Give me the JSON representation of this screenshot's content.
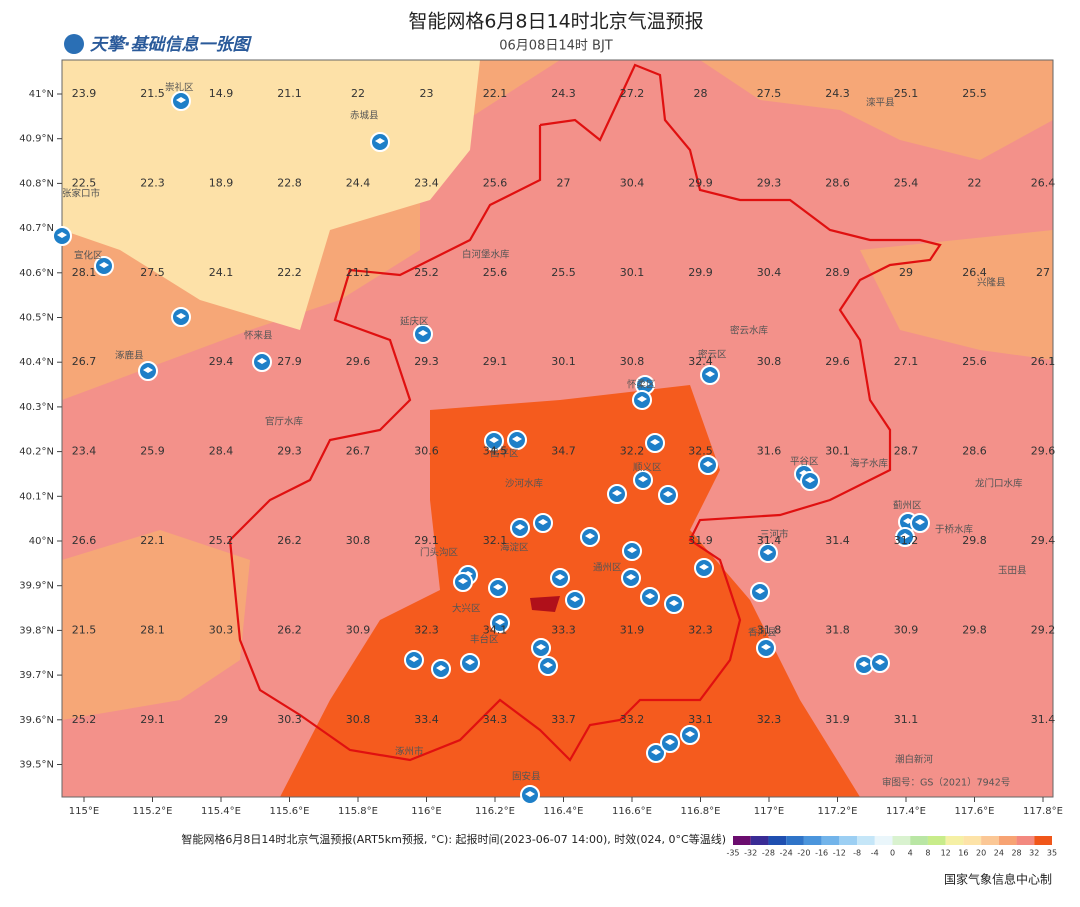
{
  "header": {
    "title": "智能网格6月8日14时北京气温预报",
    "subtitle": "06月08日14时 BJT",
    "logo": "天擎·基础信息一张图"
  },
  "map": {
    "lat_ticks": [
      {
        "value": 41,
        "label": "41°N"
      },
      {
        "value": 40.9,
        "label": "40.9°N"
      },
      {
        "value": 40.8,
        "label": "40.8°N"
      },
      {
        "value": 40.7,
        "label": "40.7°N"
      },
      {
        "value": 40.6,
        "label": "40.6°N"
      },
      {
        "value": 40.5,
        "label": "40.5°N"
      },
      {
        "value": 40.4,
        "label": "40.4°N"
      },
      {
        "value": 40.3,
        "label": "40.3°N"
      },
      {
        "value": 40.2,
        "label": "40.2°N"
      },
      {
        "value": 40.1,
        "label": "40.1°N"
      },
      {
        "value": 40,
        "label": "40°N"
      },
      {
        "value": 39.9,
        "label": "39.9°N"
      },
      {
        "value": 39.8,
        "label": "39.8°N"
      },
      {
        "value": 39.7,
        "label": "39.7°N"
      },
      {
        "value": 39.6,
        "label": "39.6°N"
      },
      {
        "value": 39.5,
        "label": "39.5°N"
      }
    ],
    "lon_ticks": [
      {
        "value": 115,
        "label": "115°E"
      },
      {
        "value": 115.2,
        "label": "115.2°E"
      },
      {
        "value": 115.4,
        "label": "115.4°E"
      },
      {
        "value": 115.6,
        "label": "115.6°E"
      },
      {
        "value": 115.8,
        "label": "115.8°E"
      },
      {
        "value": 116,
        "label": "116°E"
      },
      {
        "value": 116.2,
        "label": "116.2°E"
      },
      {
        "value": 116.4,
        "label": "116.4°E"
      },
      {
        "value": 116.6,
        "label": "116.6°E"
      },
      {
        "value": 116.8,
        "label": "116.8°E"
      },
      {
        "value": 117,
        "label": "117°E"
      },
      {
        "value": 117.2,
        "label": "117.2°E"
      },
      {
        "value": 117.4,
        "label": "117.4°E"
      },
      {
        "value": 117.6,
        "label": "117.6°E"
      },
      {
        "value": 117.8,
        "label": "117.8°E"
      }
    ],
    "temperature_rows": [
      [
        23.9,
        21.5,
        14.9,
        21.1,
        22,
        23,
        22.1,
        24.3,
        27.2,
        28,
        27.5,
        24.3,
        25.1,
        25.5,
        null
      ],
      [
        22.5,
        22.3,
        18.9,
        22.8,
        24.4,
        23.4,
        25.6,
        27,
        30.4,
        29.9,
        29.3,
        28.6,
        25.4,
        22,
        26.4
      ],
      [
        28.1,
        27.5,
        24.1,
        22.2,
        21.1,
        25.2,
        25.6,
        25.5,
        30.1,
        29.9,
        30.4,
        28.9,
        29,
        26.4,
        27
      ],
      [
        26.7,
        null,
        29.4,
        27.9,
        29.6,
        29.3,
        29.1,
        30.1,
        30.8,
        32.4,
        30.8,
        29.6,
        27.1,
        25.6,
        26.1
      ],
      [
        23.4,
        25.9,
        28.4,
        29.3,
        26.7,
        30.6,
        34.5,
        34.7,
        32.2,
        32.5,
        31.6,
        30.1,
        28.7,
        28.6,
        29.6
      ],
      [
        26.6,
        22.1,
        25.2,
        26.2,
        30.8,
        29.1,
        32.1,
        null,
        null,
        31.9,
        31.4,
        31.4,
        31.2,
        29.8,
        29.4
      ],
      [
        21.5,
        28.1,
        30.3,
        26.2,
        30.9,
        32.3,
        34.1,
        33.3,
        31.9,
        32.3,
        31.8,
        31.8,
        30.9,
        29.8,
        29.2
      ],
      [
        25.2,
        29.1,
        29,
        30.3,
        30.8,
        33.4,
        34.3,
        33.7,
        33.2,
        33.1,
        32.3,
        31.9,
        31.1,
        null,
        31.4
      ]
    ],
    "places": [
      "崇礼区",
      "赤城县",
      "张家口市",
      "宣化区",
      "怀来县",
      "涿鹿县",
      "官厅水库",
      "延庆区",
      "白河堡水库",
      "密云水库",
      "密云区",
      "怀柔区",
      "昌平区",
      "沙河水库",
      "顺义区",
      "门头沟区",
      "海淀区",
      "丰台区",
      "大兴区",
      "涿州市",
      "固安县",
      "平谷区",
      "海子水库",
      "蓟州区",
      "于桥水库",
      "三河市",
      "通州区",
      "香河县",
      "龙门口水库",
      "玉田县",
      "兴隆县",
      "滦平县",
      "潮白新河",
      "审图号：GS（2021）7942号"
    ],
    "legend": {
      "labels": [
        -35,
        -32,
        -28,
        -24,
        -20,
        -16,
        -12,
        -8,
        -4,
        0,
        4,
        8,
        12,
        16,
        20,
        24,
        28,
        32,
        35
      ],
      "colors": [
        "#6b0d6e",
        "#3a2c95",
        "#1f4fb0",
        "#2f74c8",
        "#4b95dc",
        "#72b4ea",
        "#9ccff3",
        "#c5e6f8",
        "#eaf6fb",
        "#d9f2cf",
        "#b9e6a4",
        "#c8ec8a",
        "#f5f0a5",
        "#fde3a8",
        "#fbc795",
        "#f7a373",
        "#f3897f",
        "#f0561a"
      ]
    }
  },
  "footer": {
    "caption": "智能网格6月8日14时北京气温预报(ART5km预报, °C): 起报时间(2023-06-07 14:00), 时效(024, 0°C等温线)",
    "credit": "国家气象信息中心制"
  }
}
